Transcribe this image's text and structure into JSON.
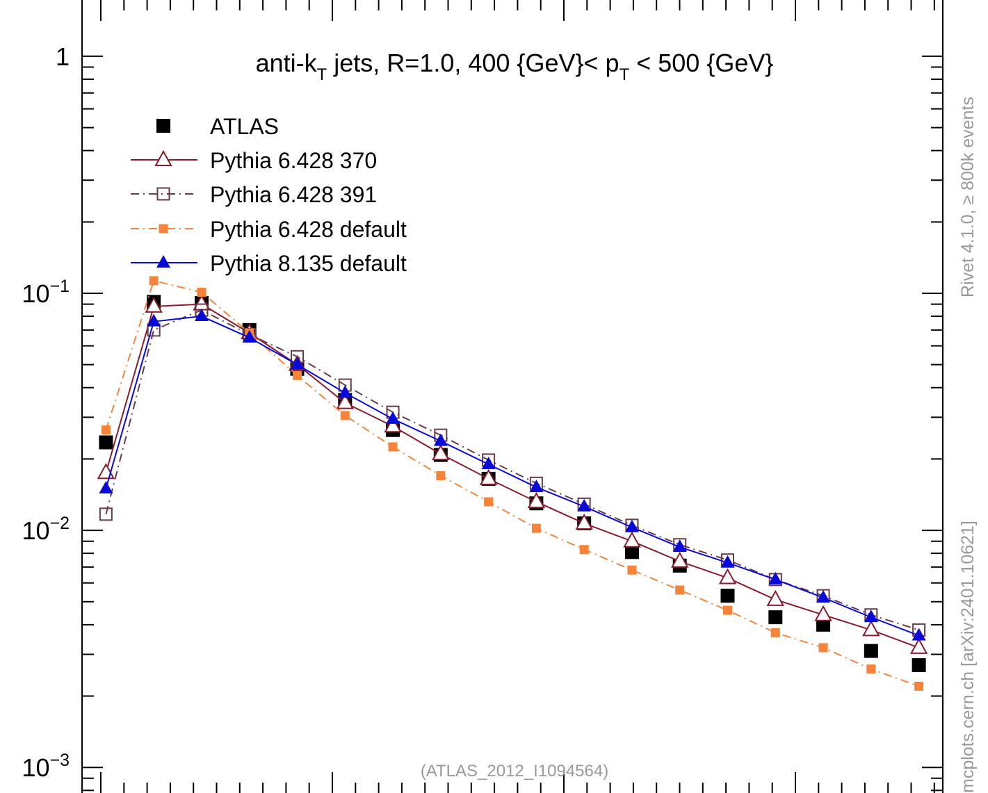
{
  "chart_data": {
    "type": "line",
    "title": "anti-k",
    "title_sub": "T",
    "title_part2": " jets, R=1.0, 400 {GeV}< p",
    "title_sub2": "T",
    "title_part3": " < 500 {GeV}",
    "analysis_label": "(ATLAS_2012_I1094564)",
    "side_label_top": "Rivet 4.1.0, ≥ 800k events",
    "side_label_bottom": "mcplots.cern.ch [arXiv:2401.10621]",
    "y_scale": "log",
    "ylim": [
      0.00078,
      1.75
    ],
    "xlim": [
      0.5,
      18.5
    ],
    "grid": false,
    "legend_position": "top-left",
    "y_ticks": [
      {
        "value": 1,
        "mantissa": "1",
        "exp": ""
      },
      {
        "value": 0.1,
        "mantissa": "10",
        "exp": "−1"
      },
      {
        "value": 0.01,
        "mantissa": "10",
        "exp": "−2"
      },
      {
        "value": 0.001,
        "mantissa": "10",
        "exp": "−3"
      }
    ],
    "x": [
      1,
      2,
      3,
      4,
      5,
      6,
      7,
      8,
      9,
      10,
      11,
      12,
      13,
      14,
      15,
      16,
      17,
      18
    ],
    "series": [
      {
        "name": "ATLAS",
        "color": "#000000",
        "marker": "square-filled",
        "line": "none",
        "values": [
          0.0235,
          0.092,
          0.091,
          0.07,
          0.048,
          0.0355,
          0.0265,
          0.0208,
          0.0165,
          0.013,
          0.0107,
          0.0081,
          0.0071,
          0.0053,
          0.0043,
          0.004,
          0.0031,
          0.0027
        ]
      },
      {
        "name": "Pythia 6.428 370",
        "color": "#8b1a2b",
        "marker": "triangle-open",
        "line": "solid",
        "values": [
          0.0175,
          0.088,
          0.09,
          0.068,
          0.05,
          0.0345,
          0.0275,
          0.021,
          0.0165,
          0.0132,
          0.0107,
          0.009,
          0.0074,
          0.0063,
          0.0051,
          0.0044,
          0.0038,
          0.0032
        ]
      },
      {
        "name": "Pythia 6.428 391",
        "color": "#6b3a4a",
        "marker": "square-open",
        "line": "dashdot",
        "values": [
          0.0117,
          0.07,
          0.085,
          0.067,
          0.054,
          0.041,
          0.0315,
          0.0252,
          0.0198,
          0.0158,
          0.0129,
          0.0105,
          0.0087,
          0.0075,
          0.0062,
          0.0053,
          0.0044,
          0.0038
        ]
      },
      {
        "name": "Pythia 6.428 default",
        "color": "#f5843a",
        "marker": "square-small-filled",
        "line": "dashdot",
        "values": [
          0.0265,
          0.113,
          0.101,
          0.068,
          0.045,
          0.0305,
          0.0225,
          0.017,
          0.0132,
          0.0102,
          0.0083,
          0.0068,
          0.0056,
          0.0046,
          0.0037,
          0.0032,
          0.0026,
          0.0022
        ]
      },
      {
        "name": "Pythia 8.135 default",
        "color": "#0a0ad8",
        "marker": "triangle-filled",
        "line": "solid",
        "values": [
          0.015,
          0.076,
          0.08,
          0.065,
          0.05,
          0.038,
          0.0295,
          0.0238,
          0.019,
          0.0152,
          0.0126,
          0.0103,
          0.0085,
          0.0073,
          0.0062,
          0.0052,
          0.0043,
          0.0036
        ]
      }
    ]
  }
}
